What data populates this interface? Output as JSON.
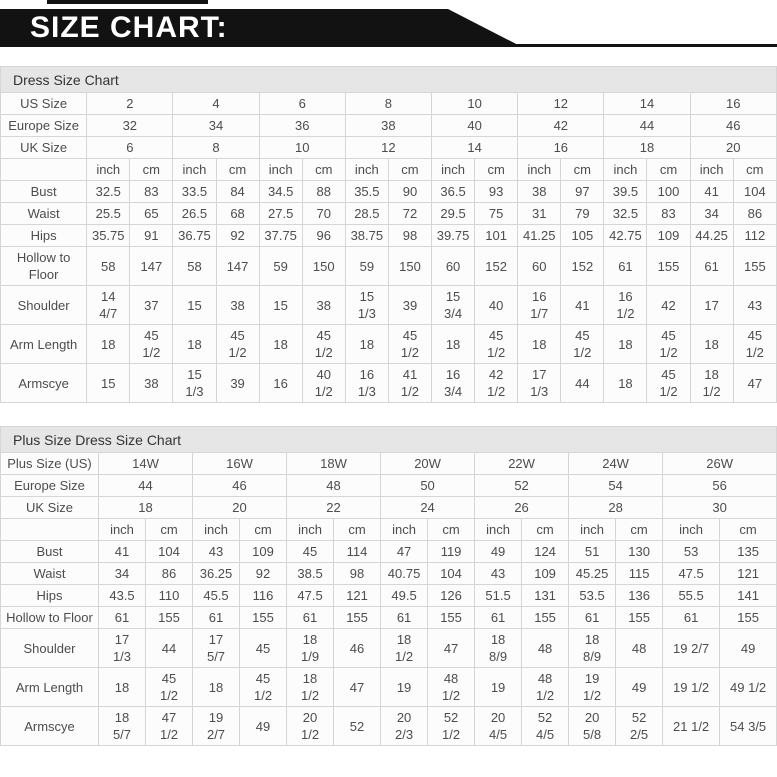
{
  "banner": {
    "title": "SIZE CHART:"
  },
  "units": {
    "inch": "inch",
    "cm": "cm"
  },
  "colors": {
    "banner_bg": "#121212",
    "banner_text": "#ffffff",
    "title_bar_bg": "#e6e6e6",
    "label_cell_bg": "#efefef",
    "data_cell_bg": "#fcfcfc",
    "border": "#d6d6d6",
    "text": "#4d4d4d"
  },
  "table1": {
    "title": "Dress Size Chart",
    "size_rows": [
      {
        "label": "US Size",
        "values": [
          "2",
          "4",
          "6",
          "8",
          "10",
          "12",
          "14",
          "16"
        ]
      },
      {
        "label": "Europe Size",
        "values": [
          "32",
          "34",
          "36",
          "38",
          "40",
          "42",
          "44",
          "46"
        ]
      },
      {
        "label": "UK Size",
        "values": [
          "6",
          "8",
          "10",
          "12",
          "14",
          "16",
          "18",
          "20"
        ]
      }
    ],
    "measure_rows": [
      {
        "label": "Bust",
        "values": [
          "32.5",
          "83",
          "33.5",
          "84",
          "34.5",
          "88",
          "35.5",
          "90",
          "36.5",
          "93",
          "38",
          "97",
          "39.5",
          "100",
          "41",
          "104"
        ]
      },
      {
        "label": "Waist",
        "values": [
          "25.5",
          "65",
          "26.5",
          "68",
          "27.5",
          "70",
          "28.5",
          "72",
          "29.5",
          "75",
          "31",
          "79",
          "32.5",
          "83",
          "34",
          "86"
        ]
      },
      {
        "label": "Hips",
        "values": [
          "35.75",
          "91",
          "36.75",
          "92",
          "37.75",
          "96",
          "38.75",
          "98",
          "39.75",
          "101",
          "41.25",
          "105",
          "42.75",
          "109",
          "44.25",
          "112"
        ]
      },
      {
        "label": "Hollow to Floor",
        "values": [
          "58",
          "147",
          "58",
          "147",
          "59",
          "150",
          "59",
          "150",
          "60",
          "152",
          "60",
          "152",
          "61",
          "155",
          "61",
          "155"
        ]
      },
      {
        "label": "Shoulder",
        "values": [
          "14\n4/7",
          "37",
          "15",
          "38",
          "15",
          "38",
          "15\n1/3",
          "39",
          "15\n3/4",
          "40",
          "16\n1/7",
          "41",
          "16\n1/2",
          "42",
          "17",
          "43"
        ]
      },
      {
        "label": "Arm Length",
        "values": [
          "18",
          "45\n1/2",
          "18",
          "45\n1/2",
          "18",
          "45\n1/2",
          "18",
          "45\n1/2",
          "18",
          "45\n1/2",
          "18",
          "45\n1/2",
          "18",
          "45\n1/2",
          "18",
          "45\n1/2"
        ]
      },
      {
        "label": "Armscye",
        "values": [
          "15",
          "38",
          "15\n1/3",
          "39",
          "16",
          "40\n1/2",
          "16\n1/3",
          "41\n1/2",
          "16\n3/4",
          "42\n1/2",
          "17\n1/3",
          "44",
          "18",
          "45\n1/2",
          "18\n1/2",
          "47"
        ]
      }
    ]
  },
  "table2": {
    "title": "Plus Size Dress Size Chart",
    "size_rows": [
      {
        "label": "Plus Size (US)",
        "values": [
          "14W",
          "16W",
          "18W",
          "20W",
          "22W",
          "24W",
          "26W"
        ]
      },
      {
        "label": "Europe Size",
        "values": [
          "44",
          "46",
          "48",
          "50",
          "52",
          "54",
          "56"
        ]
      },
      {
        "label": "UK Size",
        "values": [
          "18",
          "20",
          "22",
          "24",
          "26",
          "28",
          "30"
        ]
      }
    ],
    "measure_rows": [
      {
        "label": "Bust",
        "values": [
          "41",
          "104",
          "43",
          "109",
          "45",
          "114",
          "47",
          "119",
          "49",
          "124",
          "51",
          "130",
          "53",
          "135"
        ]
      },
      {
        "label": "Waist",
        "values": [
          "34",
          "86",
          "36.25",
          "92",
          "38.5",
          "98",
          "40.75",
          "104",
          "43",
          "109",
          "45.25",
          "115",
          "47.5",
          "121"
        ]
      },
      {
        "label": "Hips",
        "values": [
          "43.5",
          "110",
          "45.5",
          "116",
          "47.5",
          "121",
          "49.5",
          "126",
          "51.5",
          "131",
          "53.5",
          "136",
          "55.5",
          "141"
        ]
      },
      {
        "label": "Hollow to Floor",
        "values": [
          "61",
          "155",
          "61",
          "155",
          "61",
          "155",
          "61",
          "155",
          "61",
          "155",
          "61",
          "155",
          "61",
          "155"
        ]
      },
      {
        "label": "Shoulder",
        "values": [
          "17\n1/3",
          "44",
          "17\n5/7",
          "45",
          "18\n1/9",
          "46",
          "18\n1/2",
          "47",
          "18\n8/9",
          "48",
          "18\n8/9",
          "48",
          "19 2/7",
          "49"
        ]
      },
      {
        "label": "Arm Length",
        "values": [
          "18",
          "45\n1/2",
          "18",
          "45\n1/2",
          "18\n1/2",
          "47",
          "19",
          "48\n1/2",
          "19",
          "48\n1/2",
          "19\n1/2",
          "49",
          "19 1/2",
          "49 1/2"
        ]
      },
      {
        "label": "Armscye",
        "values": [
          "18\n5/7",
          "47\n1/2",
          "19\n2/7",
          "49",
          "20\n1/2",
          "52",
          "20\n2/3",
          "52\n1/2",
          "20\n4/5",
          "52\n4/5",
          "20\n5/8",
          "52\n2/5",
          "21 1/2",
          "54 3/5"
        ]
      }
    ]
  }
}
